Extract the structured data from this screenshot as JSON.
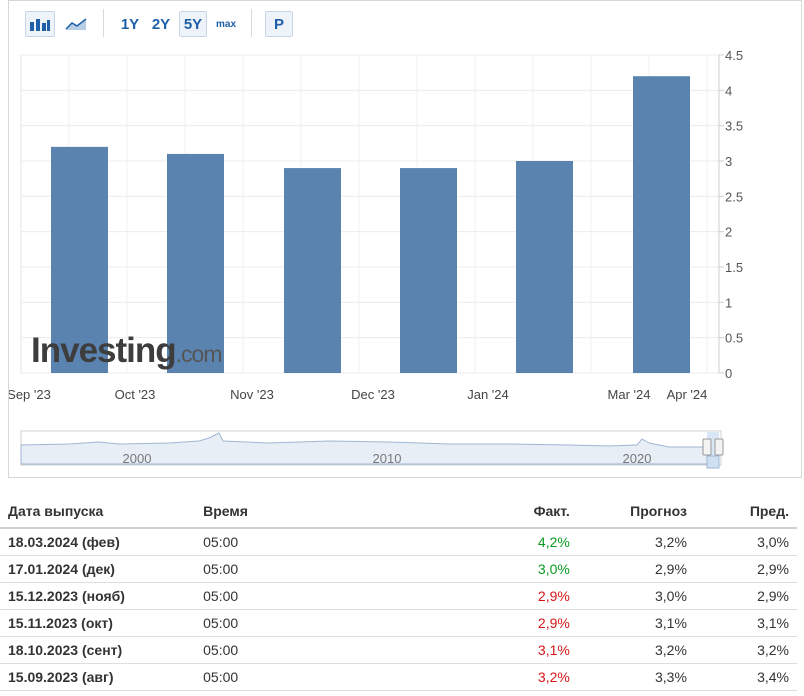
{
  "toolbar": {
    "icons": [
      "bar-chart-icon",
      "area-chart-icon"
    ],
    "ranges": [
      "1Y",
      "2Y",
      "5Y",
      "max"
    ],
    "active_range": "5Y",
    "p_label": "P"
  },
  "colors": {
    "bar": "#5b83b0",
    "positive": "#0a9a20",
    "negative": "#d51616"
  },
  "chart_data": {
    "type": "bar",
    "categories": [
      "Sep '23",
      "Oct '23",
      "Nov '23",
      "Dec '23",
      "Jan '24",
      "Mar '24"
    ],
    "values": [
      3.2,
      3.1,
      2.9,
      2.9,
      3.0,
      4.2
    ],
    "x_tick_labels": [
      "Sep '23",
      "Oct '23",
      "Nov '23",
      "Dec '23",
      "Jan '24",
      "Mar '24",
      "Apr '24"
    ],
    "y_ticks": [
      "0",
      "0.5",
      "1",
      "1.5",
      "2",
      "2.5",
      "3",
      "3.5",
      "4",
      "4.5"
    ],
    "ylim": [
      0,
      4.5
    ],
    "grid": true,
    "y_axis_side": "right",
    "watermark": "Investing.com",
    "navigator_labels": [
      "2000",
      "2010",
      "2020"
    ]
  },
  "table": {
    "headers": {
      "date": "Дата выпуска",
      "time": "Время",
      "actual": "Факт.",
      "forecast": "Прогноз",
      "previous": "Пред."
    },
    "rows": [
      {
        "date": "18.03.2024 (фев)",
        "time": "05:00",
        "actual": "4,2%",
        "actual_trend": "positive",
        "forecast": "3,2%",
        "previous": "3,0%"
      },
      {
        "date": "17.01.2024 (дек)",
        "time": "05:00",
        "actual": "3,0%",
        "actual_trend": "positive",
        "forecast": "2,9%",
        "previous": "2,9%"
      },
      {
        "date": "15.12.2023 (нояб)",
        "time": "05:00",
        "actual": "2,9%",
        "actual_trend": "negative",
        "forecast": "3,0%",
        "previous": "2,9%"
      },
      {
        "date": "15.11.2023 (окт)",
        "time": "05:00",
        "actual": "2,9%",
        "actual_trend": "negative",
        "forecast": "3,1%",
        "previous": "3,1%"
      },
      {
        "date": "18.10.2023 (сент)",
        "time": "05:00",
        "actual": "3,1%",
        "actual_trend": "negative",
        "forecast": "3,2%",
        "previous": "3,2%"
      },
      {
        "date": "15.09.2023 (авг)",
        "time": "05:00",
        "actual": "3,2%",
        "actual_trend": "negative",
        "forecast": "3,3%",
        "previous": "3,4%"
      }
    ]
  }
}
